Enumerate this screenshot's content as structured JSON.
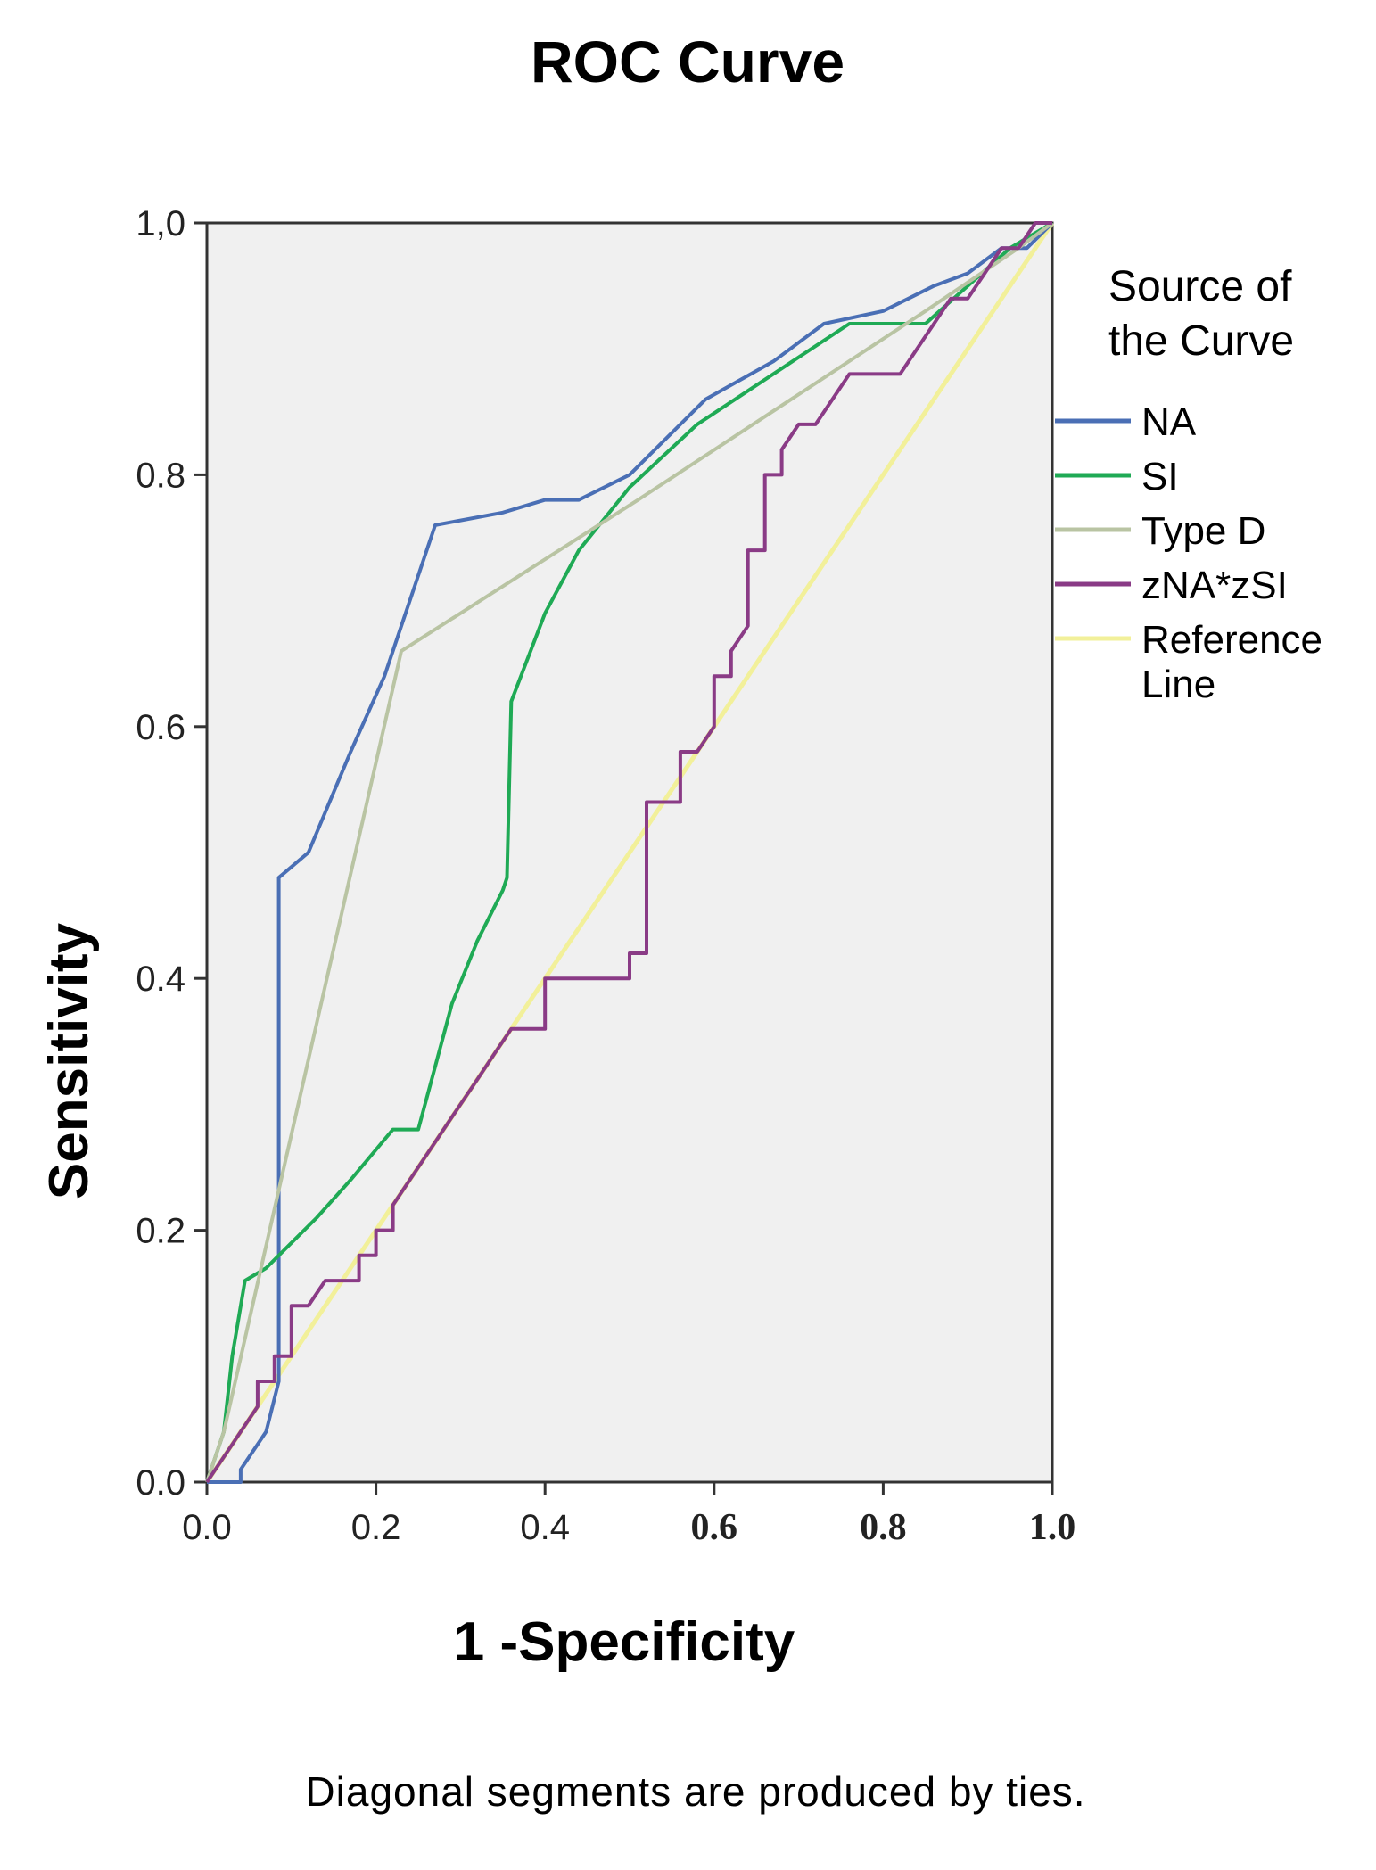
{
  "chart_data": {
    "type": "line",
    "title": "ROC Curve",
    "xlabel": "1 -Specificity",
    "ylabel": "Sensitivity",
    "xlim": [
      0,
      1
    ],
    "ylim": [
      0,
      1
    ],
    "x_ticks": [
      "0.0",
      "0.2",
      "0.4",
      "0.6",
      "0.8",
      "1.0"
    ],
    "y_ticks": [
      "0.0",
      "0.2",
      "0.4",
      "0.6",
      "0.8",
      "1,0"
    ],
    "grid": false,
    "background": "#f0f0f0",
    "legend": {
      "title_line1": "Source of",
      "title_line2": "the Curve",
      "placement": "right"
    },
    "footnote": "Diagonal segments are produced by ties.",
    "series": [
      {
        "name": "NA",
        "label_lines": [
          "NA"
        ],
        "color": "#4a6fb5",
        "x": [
          0,
          0.04,
          0.04,
          0.07,
          0.085,
          0.085,
          0.12,
          0.17,
          0.21,
          0.27,
          0.35,
          0.4,
          0.44,
          0.5,
          0.59,
          0.67,
          0.73,
          0.8,
          0.86,
          0.9,
          0.94,
          0.97,
          1.0
        ],
        "y": [
          0,
          0,
          0.01,
          0.04,
          0.08,
          0.48,
          0.5,
          0.58,
          0.64,
          0.76,
          0.77,
          0.78,
          0.78,
          0.8,
          0.86,
          0.89,
          0.92,
          0.93,
          0.95,
          0.96,
          0.98,
          0.98,
          1.0
        ]
      },
      {
        "name": "SI",
        "label_lines": [
          "SI"
        ],
        "color": "#1faa55",
        "x": [
          0,
          0.01,
          0.02,
          0.03,
          0.045,
          0.07,
          0.1,
          0.13,
          0.17,
          0.22,
          0.25,
          0.27,
          0.29,
          0.32,
          0.35,
          0.355,
          0.36,
          0.4,
          0.44,
          0.5,
          0.58,
          0.67,
          0.76,
          0.85,
          0.9,
          0.95,
          1.0
        ],
        "y": [
          0,
          0.02,
          0.04,
          0.1,
          0.16,
          0.17,
          0.19,
          0.21,
          0.24,
          0.28,
          0.28,
          0.33,
          0.38,
          0.43,
          0.47,
          0.48,
          0.62,
          0.69,
          0.74,
          0.79,
          0.84,
          0.88,
          0.92,
          0.92,
          0.95,
          0.98,
          1.0
        ]
      },
      {
        "name": "Type D",
        "label_lines": [
          "Type D"
        ],
        "color": "#b9c4a3",
        "x": [
          0,
          0.02,
          0.23,
          0.51,
          0.85,
          0.96,
          1.0
        ],
        "y": [
          0,
          0.04,
          0.66,
          0.78,
          0.93,
          0.98,
          1.0
        ]
      },
      {
        "name": "zNA*zSI",
        "label_lines": [
          "zNA*zSI"
        ],
        "color": "#8a3b86",
        "x": [
          0,
          0.02,
          0.04,
          0.06,
          0.06,
          0.08,
          0.08,
          0.1,
          0.1,
          0.12,
          0.14,
          0.14,
          0.16,
          0.18,
          0.18,
          0.2,
          0.2,
          0.22,
          0.22,
          0.24,
          0.26,
          0.28,
          0.3,
          0.32,
          0.34,
          0.36,
          0.38,
          0.4,
          0.4,
          0.42,
          0.44,
          0.46,
          0.48,
          0.5,
          0.5,
          0.52,
          0.52,
          0.54,
          0.56,
          0.56,
          0.58,
          0.6,
          0.6,
          0.62,
          0.62,
          0.64,
          0.64,
          0.66,
          0.66,
          0.68,
          0.68,
          0.7,
          0.72,
          0.74,
          0.76,
          0.78,
          0.8,
          0.82,
          0.84,
          0.86,
          0.88,
          0.9,
          0.92,
          0.94,
          0.96,
          0.98,
          1.0
        ],
        "y": [
          0,
          0.02,
          0.04,
          0.06,
          0.08,
          0.08,
          0.1,
          0.1,
          0.14,
          0.14,
          0.16,
          0.16,
          0.16,
          0.16,
          0.18,
          0.18,
          0.2,
          0.2,
          0.22,
          0.24,
          0.26,
          0.28,
          0.3,
          0.32,
          0.34,
          0.36,
          0.36,
          0.36,
          0.4,
          0.4,
          0.4,
          0.4,
          0.4,
          0.4,
          0.42,
          0.42,
          0.54,
          0.54,
          0.54,
          0.58,
          0.58,
          0.6,
          0.64,
          0.64,
          0.66,
          0.68,
          0.74,
          0.74,
          0.8,
          0.8,
          0.82,
          0.84,
          0.84,
          0.86,
          0.88,
          0.88,
          0.88,
          0.88,
          0.9,
          0.92,
          0.94,
          0.94,
          0.96,
          0.98,
          0.98,
          1.0,
          1.0
        ]
      },
      {
        "name": "Reference Line",
        "label_lines": [
          "Reference",
          "Line"
        ],
        "color": "#f2f09a",
        "x": [
          0,
          1
        ],
        "y": [
          0,
          1
        ]
      }
    ]
  }
}
